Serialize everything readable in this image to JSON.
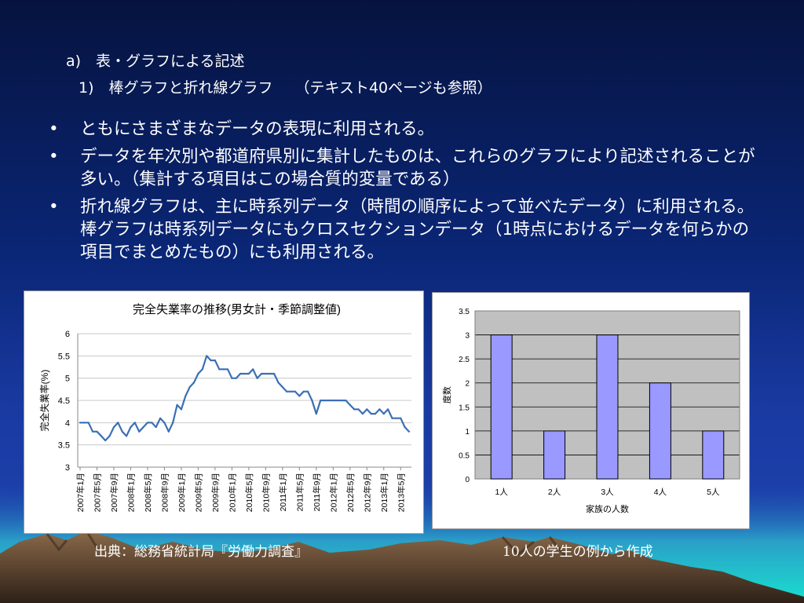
{
  "heading": {
    "section": "a)　表・グラフによる記述",
    "subsection": "1)　棒グラフと折れ線グラフ",
    "reference": "（テキスト40ページも参照）"
  },
  "bullets": [
    "ともにさまざまなデータの表現に利用される。",
    "データを年次別や都道府県別に集計したものは、これらのグラフにより記述されることが多い。（集計する項目はこの場合質的変量である）",
    "折れ線グラフは、主に時系列データ（時間の順序によって並べたデータ）に利用される。棒グラフは時系列データにもクロスセクションデータ（1時点におけるデータを何らかの項目でまとめたもの）にも利用される。"
  ],
  "bullet_marker": "•",
  "captions": {
    "left": "出典：総務省統計局『労働力調査』",
    "right_number": "10",
    "right_text": "人の学生の例から作成"
  },
  "colors": {
    "line": "#3a6fb5",
    "bar_fill": "#9999ff",
    "plot_bg": "#c0c0c0",
    "slide_top": "#06133f",
    "slide_bottom": "#1e44b0"
  },
  "chart_data": [
    {
      "type": "line",
      "title": "完全失業率の推移(男女計・季節調整値)",
      "xlabel": "",
      "ylabel": "完全失業率(%)",
      "ylim": [
        3,
        6
      ],
      "yticks": [
        "3",
        "3.5",
        "4",
        "4.5",
        "5",
        "5.5",
        "6"
      ],
      "grid": true,
      "legend": "none",
      "x_tick_labels": [
        "2007年1月",
        "2007年5月",
        "2007年9月",
        "2008年1月",
        "2008年5月",
        "2008年9月",
        "2009年1月",
        "2009年5月",
        "2009年9月",
        "2010年1月",
        "2010年5月",
        "2010年9月",
        "2011年1月",
        "2011年5月",
        "2011年9月",
        "2012年1月",
        "2012年5月",
        "2012年9月",
        "2013年1月",
        "2013年5月"
      ],
      "x_start": "2007-01",
      "series": [
        {
          "values": [
            4.0,
            4.0,
            4.0,
            3.8,
            3.8,
            3.7,
            3.6,
            3.7,
            3.9,
            4.0,
            3.8,
            3.7,
            3.9,
            4.0,
            3.8,
            3.9,
            4.0,
            4.0,
            3.9,
            4.1,
            4.0,
            3.8,
            4.0,
            4.4,
            4.3,
            4.6,
            4.8,
            4.9,
            5.1,
            5.2,
            5.5,
            5.4,
            5.4,
            5.2,
            5.2,
            5.2,
            5.0,
            5.0,
            5.1,
            5.1,
            5.1,
            5.2,
            5.0,
            5.1,
            5.1,
            5.1,
            5.1,
            4.9,
            4.8,
            4.7,
            4.7,
            4.7,
            4.6,
            4.7,
            4.7,
            4.5,
            4.2,
            4.5,
            4.5,
            4.5,
            4.5,
            4.5,
            4.5,
            4.5,
            4.4,
            4.3,
            4.3,
            4.2,
            4.3,
            4.2,
            4.2,
            4.3,
            4.2,
            4.3,
            4.1,
            4.1,
            4.1,
            3.9,
            3.8
          ]
        }
      ]
    },
    {
      "type": "bar",
      "title": "",
      "categories": [
        "1人",
        "2人",
        "3人",
        "4人",
        "5人"
      ],
      "values": [
        3,
        1,
        3,
        2,
        1
      ],
      "xlabel": "家族の人数",
      "ylabel": "度数",
      "ylim": [
        0,
        3.5
      ],
      "yticks": [
        "0",
        "0.5",
        "1",
        "1.5",
        "2",
        "2.5",
        "3",
        "3.5"
      ],
      "grid": true,
      "legend": "none"
    }
  ]
}
